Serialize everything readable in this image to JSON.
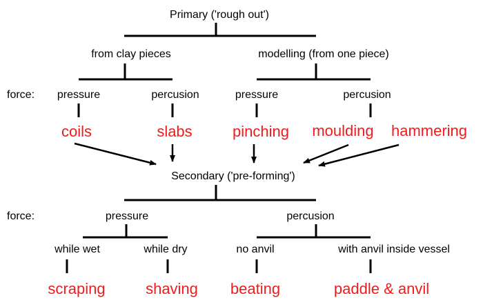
{
  "colors": {
    "technique": "#ee1c1c",
    "text": "#000000",
    "line": "#000000"
  },
  "primary": {
    "title": "Primary ('rough out')",
    "force_label": "force:",
    "branches": {
      "clay": {
        "label": "from clay pieces",
        "pressure_label": "pressure",
        "percussion_label": "percusion",
        "pressure_technique": "coils",
        "percussion_technique": "slabs"
      },
      "modelling": {
        "label": "modelling (from one piece)",
        "pressure_label": "pressure",
        "percussion_label": "percusion",
        "pressure_technique": "pinching",
        "percussion_technique_1": "moulding",
        "percussion_technique_2": "hammering"
      }
    }
  },
  "secondary": {
    "title": "Secondary ('pre-forming')",
    "force_label": "force:",
    "branches": {
      "pressure": {
        "label": "pressure",
        "wet_label": "while wet",
        "dry_label": "while dry",
        "wet_technique": "scraping",
        "dry_technique": "shaving"
      },
      "percussion": {
        "label": "percusion",
        "no_anvil_label": "no anvil",
        "anvil_label": "with anvil inside vessel",
        "no_anvil_technique": "beating",
        "anvil_technique": "paddle & anvil"
      }
    }
  }
}
